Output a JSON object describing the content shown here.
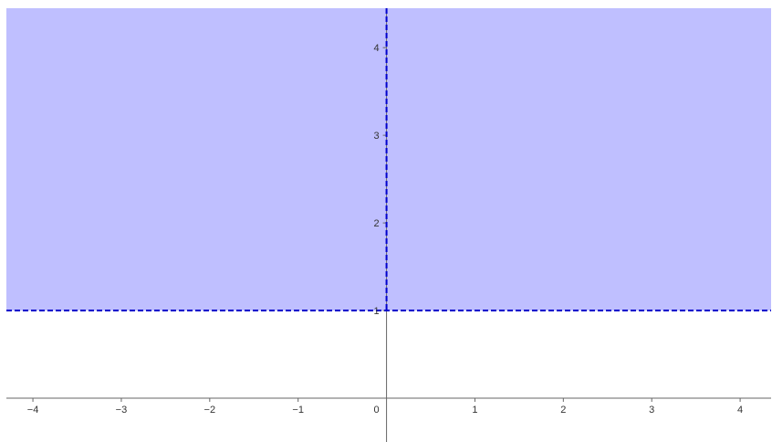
{
  "chart_data": {
    "type": "area",
    "title": "",
    "xlabel": "",
    "ylabel": "",
    "xlim": [
      -4.3,
      4.35
    ],
    "ylim": [
      -0.5,
      4.45
    ],
    "grid": false,
    "x_ticks": [
      {
        "value": -4,
        "label": "−4"
      },
      {
        "value": -3,
        "label": "−3"
      },
      {
        "value": -2,
        "label": "−2"
      },
      {
        "value": -1,
        "label": "−1"
      },
      {
        "value": 1,
        "label": "1"
      },
      {
        "value": 2,
        "label": "2"
      },
      {
        "value": 3,
        "label": "3"
      },
      {
        "value": 4,
        "label": "4"
      }
    ],
    "y_ticks": [
      {
        "value": 1,
        "label": "1"
      },
      {
        "value": 2,
        "label": "2"
      },
      {
        "value": 3,
        "label": "3"
      },
      {
        "value": 4,
        "label": "4"
      }
    ],
    "origin_label": "0",
    "shaded_region": {
      "x_min": -4.3,
      "x_max": 4.35,
      "y_min": 1,
      "y_max": 4.45,
      "fill": "#bfbfff"
    },
    "boundary_lines": [
      {
        "orientation": "horizontal",
        "value": 1,
        "style": "dashed",
        "color": "#0000cc"
      },
      {
        "orientation": "vertical",
        "value": 0,
        "style": "dashed",
        "color": "#0000cc",
        "y_from": 1,
        "y_to": 4.45
      }
    ],
    "colors": {
      "axis": "#666666",
      "fill": "#bfbfff",
      "boundary": "#0000cc"
    }
  }
}
